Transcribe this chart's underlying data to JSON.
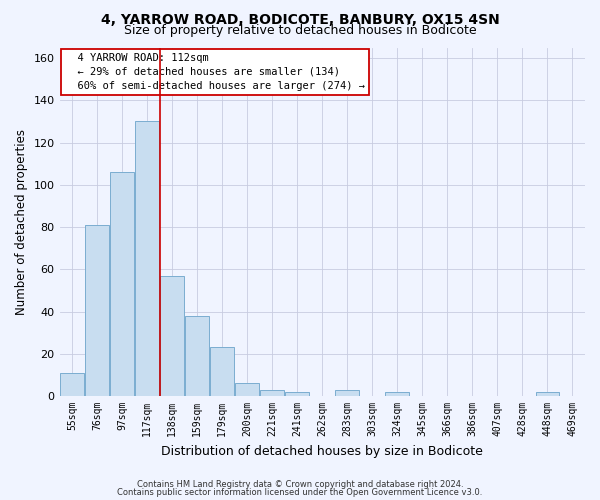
{
  "title_line1": "4, YARROW ROAD, BODICOTE, BANBURY, OX15 4SN",
  "title_line2": "Size of property relative to detached houses in Bodicote",
  "xlabel": "Distribution of detached houses by size in Bodicote",
  "ylabel": "Number of detached properties",
  "categories": [
    "55sqm",
    "76sqm",
    "97sqm",
    "117sqm",
    "138sqm",
    "159sqm",
    "179sqm",
    "200sqm",
    "221sqm",
    "241sqm",
    "262sqm",
    "283sqm",
    "303sqm",
    "324sqm",
    "345sqm",
    "366sqm",
    "386sqm",
    "407sqm",
    "428sqm",
    "448sqm",
    "469sqm"
  ],
  "values": [
    11,
    81,
    106,
    130,
    57,
    38,
    23,
    6,
    3,
    2,
    0,
    3,
    0,
    2,
    0,
    0,
    0,
    0,
    0,
    2,
    0
  ],
  "bar_color": "#c8ddf0",
  "bar_edge_color": "#7aadd0",
  "vline_color": "#cc0000",
  "vline_x": 3.5,
  "annotation_text": "  4 YARROW ROAD: 112sqm\n  ← 29% of detached houses are smaller (134)\n  60% of semi-detached houses are larger (274) →",
  "annotation_box_color": "white",
  "annotation_box_edge_color": "#cc0000",
  "ylim": [
    0,
    165
  ],
  "yticks": [
    0,
    20,
    40,
    60,
    80,
    100,
    120,
    140,
    160
  ],
  "footer_line1": "Contains HM Land Registry data © Crown copyright and database right 2024.",
  "footer_line2": "Contains public sector information licensed under the Open Government Licence v3.0.",
  "bg_color": "#f0f4ff",
  "grid_color": "#c8cce0",
  "title1_fontsize": 10,
  "title2_fontsize": 9,
  "ylabel_fontsize": 8.5,
  "xlabel_fontsize": 9,
  "tick_fontsize": 7,
  "annot_fontsize": 7.5
}
